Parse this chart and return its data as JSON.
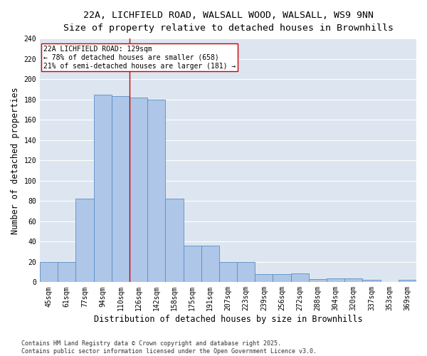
{
  "title_line1": "22A, LICHFIELD ROAD, WALSALL WOOD, WALSALL, WS9 9NN",
  "title_line2": "Size of property relative to detached houses in Brownhills",
  "xlabel": "Distribution of detached houses by size in Brownhills",
  "ylabel": "Number of detached properties",
  "categories": [
    "45sqm",
    "61sqm",
    "77sqm",
    "94sqm",
    "110sqm",
    "126sqm",
    "142sqm",
    "158sqm",
    "175sqm",
    "191sqm",
    "207sqm",
    "223sqm",
    "239sqm",
    "256sqm",
    "272sqm",
    "288sqm",
    "304sqm",
    "320sqm",
    "337sqm",
    "353sqm",
    "369sqm"
  ],
  "values": [
    20,
    20,
    82,
    185,
    183,
    182,
    180,
    82,
    36,
    36,
    20,
    20,
    8,
    8,
    9,
    3,
    4,
    4,
    2,
    0,
    2
  ],
  "bar_color": "#aec6e8",
  "bar_edge_color": "#5b8ec4",
  "ref_line_index": 5,
  "ref_line_color": "#cc0000",
  "annotation_text": "22A LICHFIELD ROAD: 129sqm\n← 78% of detached houses are smaller (658)\n21% of semi-detached houses are larger (181) →",
  "annotation_box_color": "#ffffff",
  "annotation_box_edge": "#cc0000",
  "ylim": [
    0,
    240
  ],
  "yticks": [
    0,
    20,
    40,
    60,
    80,
    100,
    120,
    140,
    160,
    180,
    200,
    220,
    240
  ],
  "background_color": "#dde6f0",
  "grid_color": "#ffffff",
  "fig_background": "#ffffff",
  "footer_text": "Contains HM Land Registry data © Crown copyright and database right 2025.\nContains public sector information licensed under the Open Government Licence v3.0.",
  "title_fontsize": 9.5,
  "subtitle_fontsize": 9,
  "axis_label_fontsize": 8.5,
  "tick_fontsize": 7,
  "annotation_fontsize": 7,
  "footer_fontsize": 6
}
